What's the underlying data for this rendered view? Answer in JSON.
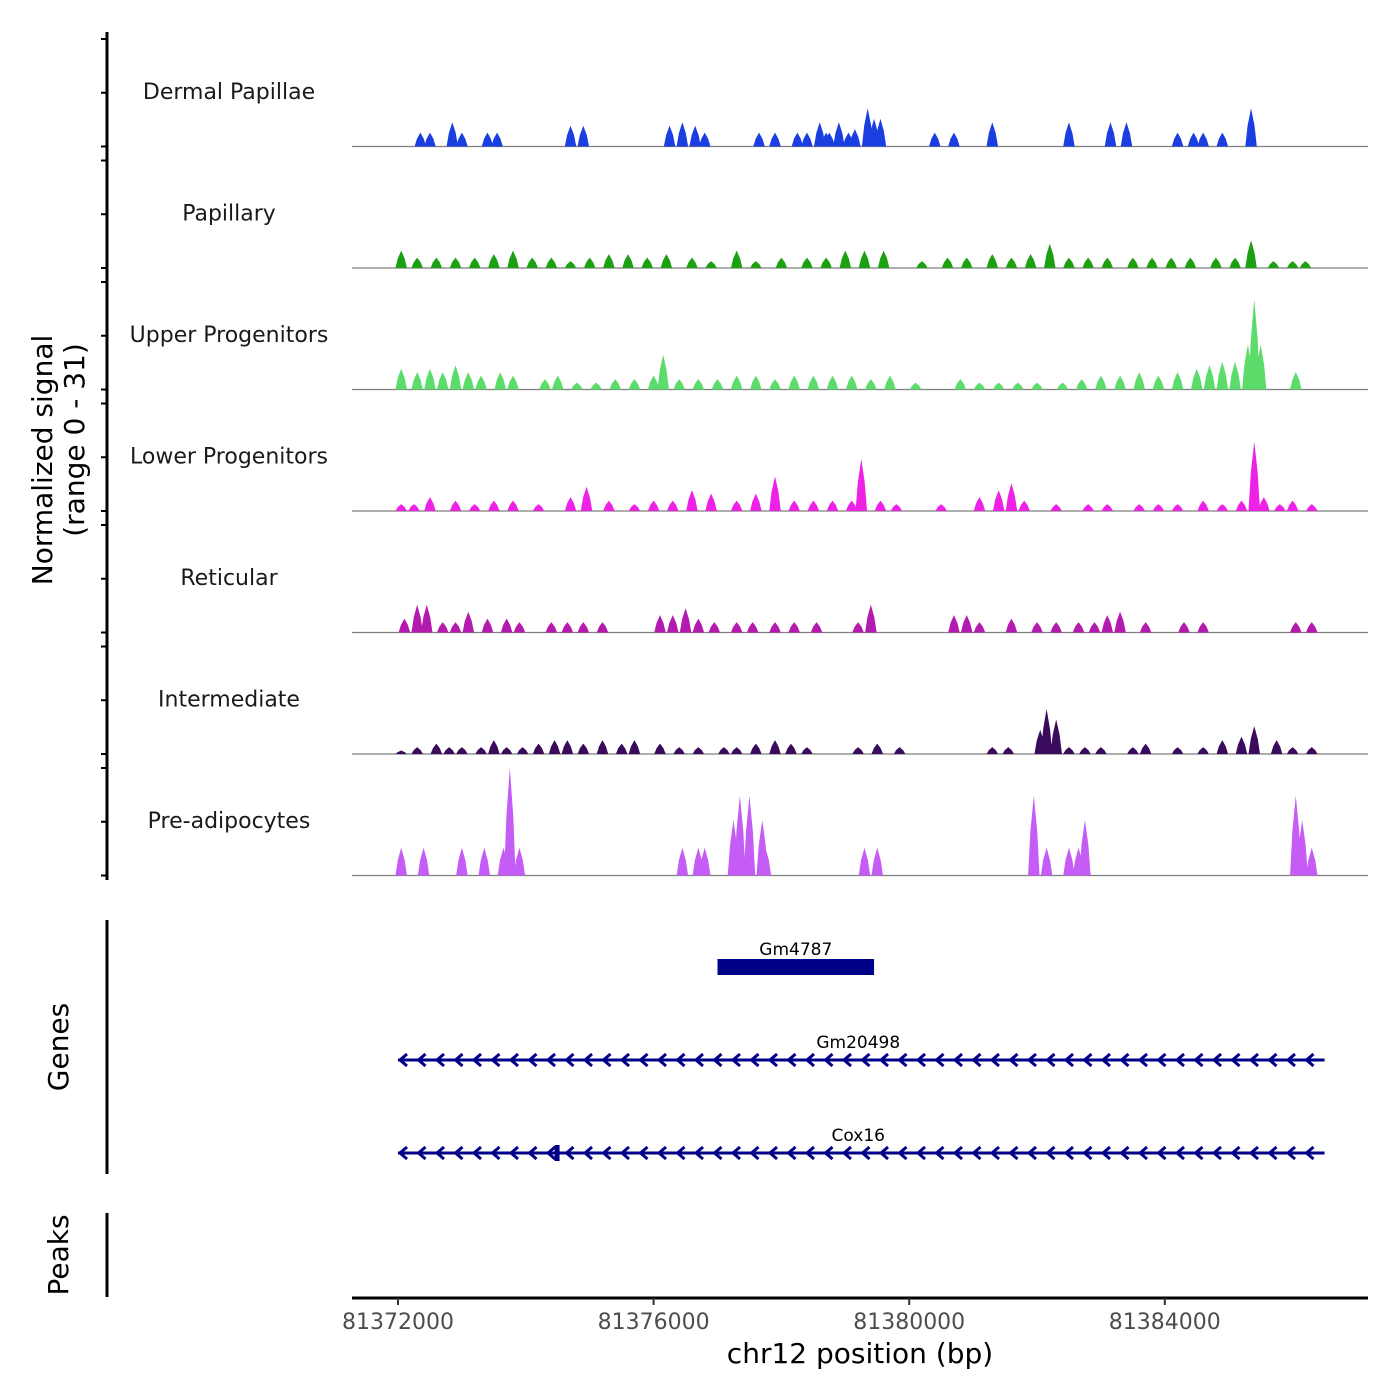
{
  "chart_data": {
    "type": "area",
    "title": "",
    "xlabel": "chr12 position (bp)",
    "ylabel": "Normalized signal\n(range 0 - 31)",
    "ylabel_lines": [
      "Normalized signal",
      "(range 0 - 31)"
    ],
    "ylim": [
      0,
      31
    ],
    "xlim": [
      81371280,
      81387180
    ],
    "x_ticks": [
      81372000,
      81376000,
      81380000,
      81384000
    ],
    "x_tick_labels": [
      "81372000",
      "81376000",
      "81380000",
      "81384000"
    ],
    "grid": false,
    "tracks": [
      {
        "name": "Dermal Papillae",
        "color": "#1a3ee0",
        "peaks": [
          [
            81372350,
            4
          ],
          [
            81372500,
            4
          ],
          [
            81372850,
            7
          ],
          [
            81373000,
            4
          ],
          [
            81373400,
            4
          ],
          [
            81373550,
            4
          ],
          [
            81374700,
            6
          ],
          [
            81374900,
            6
          ],
          [
            81376250,
            6
          ],
          [
            81376450,
            7
          ],
          [
            81376650,
            6
          ],
          [
            81376800,
            4
          ],
          [
            81377650,
            4
          ],
          [
            81377900,
            4
          ],
          [
            81378250,
            4
          ],
          [
            81378400,
            4
          ],
          [
            81378600,
            7
          ],
          [
            81378750,
            4
          ],
          [
            81378900,
            7
          ],
          [
            81379050,
            4
          ],
          [
            81378700,
            4
          ],
          [
            81379150,
            5
          ],
          [
            81379350,
            11
          ],
          [
            81379450,
            8
          ],
          [
            81379550,
            8
          ],
          [
            81380400,
            4
          ],
          [
            81380700,
            4
          ],
          [
            81381300,
            7
          ],
          [
            81382500,
            7
          ],
          [
            81383150,
            7
          ],
          [
            81383400,
            7
          ],
          [
            81384200,
            4
          ],
          [
            81384450,
            4
          ],
          [
            81384600,
            4
          ],
          [
            81384900,
            4
          ],
          [
            81385350,
            11
          ]
        ]
      },
      {
        "name": "Papillary",
        "color": "#1aa010",
        "peaks": [
          [
            81372050,
            5
          ],
          [
            81372300,
            3
          ],
          [
            81372600,
            3
          ],
          [
            81372900,
            3
          ],
          [
            81373200,
            3
          ],
          [
            81373500,
            4
          ],
          [
            81373800,
            5
          ],
          [
            81374100,
            3
          ],
          [
            81374400,
            3
          ],
          [
            81374700,
            2
          ],
          [
            81375000,
            3
          ],
          [
            81375300,
            4
          ],
          [
            81375600,
            4
          ],
          [
            81375900,
            3
          ],
          [
            81376200,
            4
          ],
          [
            81376600,
            3
          ],
          [
            81376900,
            2
          ],
          [
            81377300,
            5
          ],
          [
            81377600,
            2
          ],
          [
            81378000,
            3
          ],
          [
            81378400,
            3
          ],
          [
            81378700,
            3
          ],
          [
            81379000,
            5
          ],
          [
            81379300,
            5
          ],
          [
            81379600,
            5
          ],
          [
            81380200,
            2
          ],
          [
            81380600,
            3
          ],
          [
            81380900,
            3
          ],
          [
            81381300,
            4
          ],
          [
            81381600,
            3
          ],
          [
            81381900,
            4
          ],
          [
            81382200,
            7
          ],
          [
            81382500,
            3
          ],
          [
            81382800,
            3
          ],
          [
            81383100,
            3
          ],
          [
            81383500,
            3
          ],
          [
            81383800,
            3
          ],
          [
            81384100,
            3
          ],
          [
            81384400,
            3
          ],
          [
            81384800,
            3
          ],
          [
            81385100,
            3
          ],
          [
            81385350,
            8
          ],
          [
            81385700,
            2
          ],
          [
            81386000,
            2
          ],
          [
            81386200,
            2
          ]
        ]
      },
      {
        "name": "Upper Progenitors",
        "color": "#5cdc6a",
        "peaks": [
          [
            81372050,
            6
          ],
          [
            81372300,
            5
          ],
          [
            81372500,
            6
          ],
          [
            81372700,
            5
          ],
          [
            81372900,
            7
          ],
          [
            81373100,
            5
          ],
          [
            81373300,
            4
          ],
          [
            81373600,
            5
          ],
          [
            81373800,
            4
          ],
          [
            81374300,
            3
          ],
          [
            81374500,
            4
          ],
          [
            81374800,
            2
          ],
          [
            81375100,
            2
          ],
          [
            81375400,
            3
          ],
          [
            81375700,
            3
          ],
          [
            81376000,
            4
          ],
          [
            81376150,
            10
          ],
          [
            81376400,
            3
          ],
          [
            81376700,
            3
          ],
          [
            81377000,
            3
          ],
          [
            81377300,
            4
          ],
          [
            81377600,
            4
          ],
          [
            81377900,
            3
          ],
          [
            81378200,
            4
          ],
          [
            81378500,
            4
          ],
          [
            81378800,
            4
          ],
          [
            81379100,
            4
          ],
          [
            81379400,
            3
          ],
          [
            81379700,
            4
          ],
          [
            81380100,
            2
          ],
          [
            81380800,
            3
          ],
          [
            81381100,
            2
          ],
          [
            81381400,
            2
          ],
          [
            81381700,
            2
          ],
          [
            81382000,
            2
          ],
          [
            81382400,
            2
          ],
          [
            81382700,
            3
          ],
          [
            81383000,
            4
          ],
          [
            81383300,
            4
          ],
          [
            81383600,
            5
          ],
          [
            81383900,
            4
          ],
          [
            81384200,
            5
          ],
          [
            81384500,
            6
          ],
          [
            81384700,
            7
          ],
          [
            81384900,
            8
          ],
          [
            81385100,
            8
          ],
          [
            81385300,
            13
          ],
          [
            81385400,
            26
          ],
          [
            81385500,
            13
          ],
          [
            81386050,
            5
          ]
        ]
      },
      {
        "name": "Lower Progenitors",
        "color": "#ee22e6",
        "peaks": [
          [
            81372050,
            2
          ],
          [
            81372250,
            2
          ],
          [
            81372500,
            4
          ],
          [
            81372900,
            3
          ],
          [
            81373200,
            2
          ],
          [
            81373500,
            3
          ],
          [
            81373800,
            3
          ],
          [
            81374200,
            2
          ],
          [
            81374700,
            4
          ],
          [
            81374950,
            7
          ],
          [
            81375300,
            3
          ],
          [
            81375700,
            2
          ],
          [
            81376000,
            3
          ],
          [
            81376300,
            3
          ],
          [
            81376600,
            6
          ],
          [
            81376900,
            5
          ],
          [
            81377300,
            3
          ],
          [
            81377600,
            5
          ],
          [
            81377900,
            10
          ],
          [
            81378200,
            3
          ],
          [
            81378500,
            3
          ],
          [
            81378800,
            3
          ],
          [
            81379100,
            3
          ],
          [
            81379250,
            15
          ],
          [
            81379550,
            3
          ],
          [
            81379800,
            2
          ],
          [
            81380500,
            2
          ],
          [
            81381100,
            4
          ],
          [
            81381400,
            6
          ],
          [
            81381600,
            8
          ],
          [
            81381800,
            3
          ],
          [
            81382300,
            2
          ],
          [
            81382800,
            2
          ],
          [
            81383100,
            2
          ],
          [
            81383600,
            2
          ],
          [
            81383900,
            2
          ],
          [
            81384200,
            2
          ],
          [
            81384600,
            3
          ],
          [
            81384900,
            2
          ],
          [
            81385200,
            3
          ],
          [
            81385400,
            20
          ],
          [
            81385550,
            4
          ],
          [
            81385800,
            2
          ],
          [
            81386000,
            3
          ],
          [
            81386300,
            2
          ]
        ]
      },
      {
        "name": "Reticular",
        "color": "#b31ab0",
        "peaks": [
          [
            81372100,
            4
          ],
          [
            81372300,
            8
          ],
          [
            81372450,
            8
          ],
          [
            81372700,
            3
          ],
          [
            81372900,
            3
          ],
          [
            81373100,
            6
          ],
          [
            81373400,
            4
          ],
          [
            81373700,
            4
          ],
          [
            81373900,
            3
          ],
          [
            81374400,
            3
          ],
          [
            81374650,
            3
          ],
          [
            81374900,
            3
          ],
          [
            81375200,
            3
          ],
          [
            81376100,
            5
          ],
          [
            81376300,
            5
          ],
          [
            81376500,
            7
          ],
          [
            81376700,
            4
          ],
          [
            81376950,
            3
          ],
          [
            81377300,
            3
          ],
          [
            81377550,
            3
          ],
          [
            81377900,
            3
          ],
          [
            81378200,
            3
          ],
          [
            81378550,
            3
          ],
          [
            81379200,
            3
          ],
          [
            81379400,
            8
          ],
          [
            81380700,
            5
          ],
          [
            81380900,
            5
          ],
          [
            81381100,
            3
          ],
          [
            81381600,
            4
          ],
          [
            81382000,
            3
          ],
          [
            81382300,
            3
          ],
          [
            81382650,
            3
          ],
          [
            81382900,
            3
          ],
          [
            81383100,
            5
          ],
          [
            81383300,
            6
          ],
          [
            81383700,
            3
          ],
          [
            81384300,
            3
          ],
          [
            81384600,
            3
          ],
          [
            81386050,
            3
          ],
          [
            81386300,
            3
          ]
        ]
      },
      {
        "name": "Intermediate",
        "color": "#3a0a5c",
        "peaks": [
          [
            81372050,
            1
          ],
          [
            81372300,
            2
          ],
          [
            81372600,
            3
          ],
          [
            81372800,
            2
          ],
          [
            81373000,
            2
          ],
          [
            81373300,
            2
          ],
          [
            81373500,
            4
          ],
          [
            81373700,
            2
          ],
          [
            81373950,
            2
          ],
          [
            81374200,
            3
          ],
          [
            81374450,
            4
          ],
          [
            81374650,
            4
          ],
          [
            81374900,
            3
          ],
          [
            81375200,
            4
          ],
          [
            81375500,
            3
          ],
          [
            81375700,
            4
          ],
          [
            81376100,
            3
          ],
          [
            81376400,
            2
          ],
          [
            81376700,
            2
          ],
          [
            81377100,
            2
          ],
          [
            81377300,
            2
          ],
          [
            81377600,
            3
          ],
          [
            81377900,
            4
          ],
          [
            81378150,
            3
          ],
          [
            81378400,
            2
          ],
          [
            81379200,
            2
          ],
          [
            81379500,
            3
          ],
          [
            81379850,
            2
          ],
          [
            81381300,
            2
          ],
          [
            81381550,
            2
          ],
          [
            81382050,
            7
          ],
          [
            81382150,
            13
          ],
          [
            81382300,
            10
          ],
          [
            81382500,
            2
          ],
          [
            81382750,
            2
          ],
          [
            81383000,
            2
          ],
          [
            81383500,
            2
          ],
          [
            81383700,
            3
          ],
          [
            81384200,
            2
          ],
          [
            81384600,
            2
          ],
          [
            81384900,
            4
          ],
          [
            81385200,
            5
          ],
          [
            81385400,
            8
          ],
          [
            81385750,
            4
          ],
          [
            81386000,
            2
          ],
          [
            81386300,
            2
          ]
        ]
      },
      {
        "name": "Pre-adipocytes",
        "color": "#c55cf5",
        "peaks": [
          [
            81372050,
            8
          ],
          [
            81372400,
            8
          ],
          [
            81373000,
            8
          ],
          [
            81373350,
            8
          ],
          [
            81373650,
            8
          ],
          [
            81373750,
            31
          ],
          [
            81373900,
            8
          ],
          [
            81376450,
            8
          ],
          [
            81376700,
            8
          ],
          [
            81376800,
            8
          ],
          [
            81377250,
            16
          ],
          [
            81377350,
            23
          ],
          [
            81377500,
            23
          ],
          [
            81377700,
            16
          ],
          [
            81377750,
            8
          ],
          [
            81379300,
            8
          ],
          [
            81379500,
            8
          ],
          [
            81381950,
            23
          ],
          [
            81382150,
            8
          ],
          [
            81382500,
            8
          ],
          [
            81382650,
            8
          ],
          [
            81382750,
            16
          ],
          [
            81386050,
            23
          ],
          [
            81386150,
            16
          ],
          [
            81386300,
            8
          ]
        ]
      }
    ],
    "genes": [
      {
        "name": "Gm4787",
        "strand": "-",
        "start": 81377000,
        "end": 81379450,
        "type": "exon-block"
      },
      {
        "name": "Gm20498",
        "strand": "-",
        "start": 81372000,
        "end": 81386500,
        "type": "intron-arrows"
      },
      {
        "name": "Cox16",
        "strand": "-",
        "start": 81372000,
        "end": 81386500,
        "type": "intron-arrows",
        "exons": [
          [
            81374450,
            81374520
          ]
        ]
      }
    ],
    "panel_labels": {
      "genes": "Genes",
      "peaks": "Peaks"
    },
    "colors": {
      "gene": "#000088",
      "baseline": "#7f7f7f",
      "axis": "#000000"
    }
  }
}
